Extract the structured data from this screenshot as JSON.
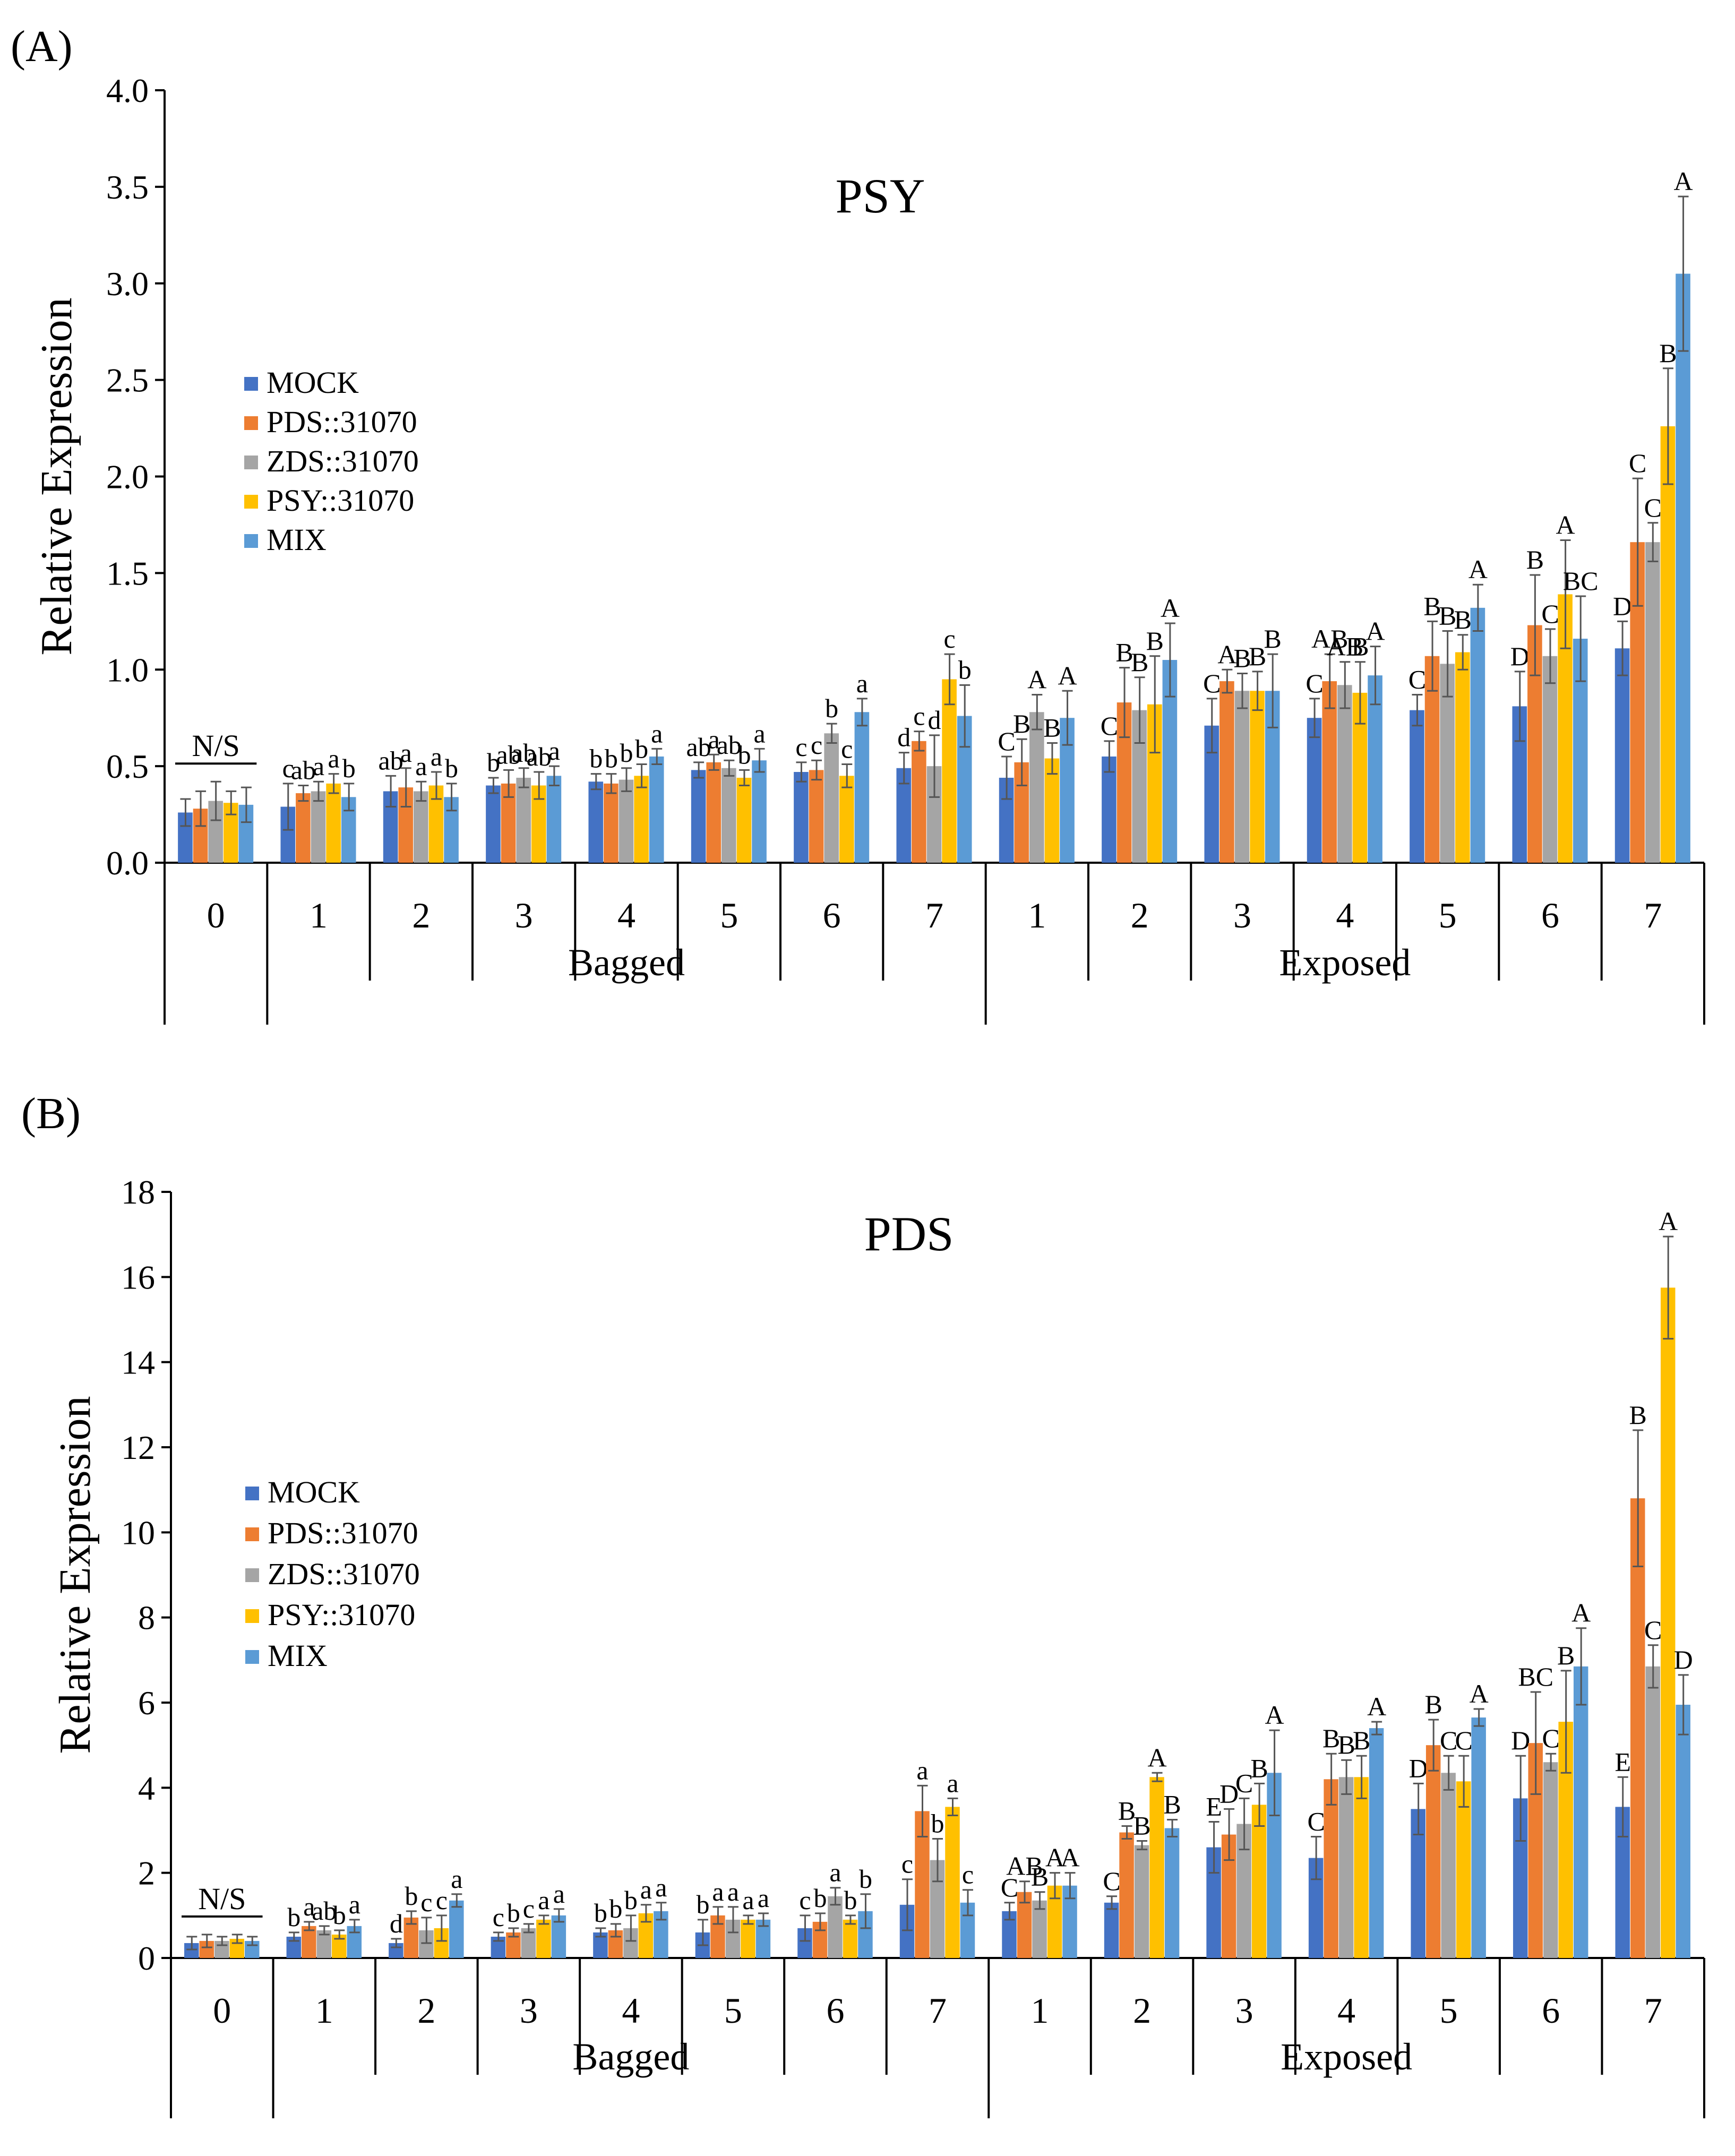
{
  "legend": {
    "series": [
      {
        "name": "MOCK",
        "color": "#4472C4"
      },
      {
        "name": "PDS::31070",
        "color": "#ED7D31"
      },
      {
        "name": "ZDS::31070",
        "color": "#A5A5A5"
      },
      {
        "name": "PSY::31070",
        "color": "#FFC000"
      },
      {
        "name": "MIX",
        "color": "#5B9BD5"
      }
    ]
  },
  "chart_data": [
    {
      "panel_label": "(A)",
      "type": "bar",
      "title": "PSY",
      "ylabel": "Relative Expression",
      "ylim": [
        0,
        4.0
      ],
      "yticks": [
        "0.0",
        "0.5",
        "1.0",
        "1.5",
        "2.0",
        "2.5",
        "3.0",
        "3.5",
        "4.0"
      ],
      "na_label": "N/S",
      "categories": [
        "0",
        "1",
        "2",
        "3",
        "4",
        "5",
        "6",
        "7",
        "1",
        "2",
        "3",
        "4",
        "5",
        "6",
        "7"
      ],
      "groups": [
        {
          "label": "Bagged",
          "from": 1,
          "to": 7
        },
        {
          "label": "Exposed",
          "from": 8,
          "to": 14
        }
      ],
      "series": [
        {
          "name": "MOCK",
          "values": [
            0.26,
            0.29,
            0.37,
            0.4,
            0.42,
            0.48,
            0.47,
            0.49,
            0.44,
            0.55,
            0.71,
            0.75,
            0.79,
            0.81,
            1.11
          ],
          "errors": [
            0.07,
            0.12,
            0.08,
            0.04,
            0.04,
            0.04,
            0.05,
            0.08,
            0.11,
            0.08,
            0.14,
            0.1,
            0.08,
            0.18,
            0.14
          ],
          "letters": [
            "",
            "c",
            "ab",
            "b",
            "b",
            "ab",
            "c",
            "d",
            "C",
            "C",
            "C",
            "C",
            "C",
            "D",
            "D"
          ]
        },
        {
          "name": "PDS::31070",
          "values": [
            0.28,
            0.36,
            0.39,
            0.41,
            0.41,
            0.52,
            0.48,
            0.63,
            0.52,
            0.83,
            0.94,
            0.94,
            1.07,
            1.23,
            1.66
          ],
          "errors": [
            0.09,
            0.04,
            0.1,
            0.07,
            0.05,
            0.04,
            0.05,
            0.05,
            0.12,
            0.18,
            0.06,
            0.14,
            0.18,
            0.26,
            0.33
          ],
          "letters": [
            "",
            "ab",
            "a",
            "ab",
            "b",
            "a",
            "c",
            "c",
            "B",
            "B",
            "A",
            "AB",
            "B",
            "B",
            "C"
          ]
        },
        {
          "name": "ZDS::31070",
          "values": [
            0.32,
            0.37,
            0.37,
            0.44,
            0.43,
            0.49,
            0.67,
            0.5,
            0.78,
            0.79,
            0.89,
            0.92,
            1.03,
            1.07,
            1.66
          ],
          "errors": [
            0.1,
            0.05,
            0.05,
            0.05,
            0.06,
            0.04,
            0.05,
            0.16,
            0.09,
            0.17,
            0.09,
            0.12,
            0.17,
            0.14,
            0.1
          ],
          "letters": [
            "",
            "a",
            "a",
            "ab",
            "b",
            "ab",
            "b",
            "d",
            "A",
            "B",
            "B",
            "AB",
            "B",
            "C",
            "C"
          ]
        },
        {
          "name": "PSY::31070",
          "values": [
            0.31,
            0.41,
            0.4,
            0.4,
            0.45,
            0.44,
            0.45,
            0.95,
            0.54,
            0.82,
            0.89,
            0.88,
            1.09,
            1.39,
            2.26
          ],
          "errors": [
            0.06,
            0.05,
            0.07,
            0.07,
            0.06,
            0.04,
            0.06,
            0.13,
            0.08,
            0.25,
            0.1,
            0.16,
            0.09,
            0.28,
            0.3
          ],
          "letters": [
            "",
            "a",
            "a",
            "ab",
            "b",
            "b",
            "c",
            "c",
            "B",
            "B",
            "B",
            "B",
            "B",
            "A",
            "B"
          ]
        },
        {
          "name": "MIX",
          "values": [
            0.3,
            0.34,
            0.34,
            0.45,
            0.55,
            0.53,
            0.78,
            0.76,
            0.75,
            1.05,
            0.89,
            0.97,
            1.32,
            1.16,
            3.05
          ],
          "errors": [
            0.09,
            0.07,
            0.07,
            0.05,
            0.04,
            0.06,
            0.07,
            0.16,
            0.14,
            0.19,
            0.19,
            0.15,
            0.12,
            0.22,
            0.4
          ],
          "letters": [
            "",
            "b",
            "b",
            "a",
            "a",
            "a",
            "a",
            "b",
            "A",
            "A",
            "B",
            "A",
            "A",
            "BC",
            "A"
          ]
        }
      ]
    },
    {
      "panel_label": "(B)",
      "type": "bar",
      "title": "PDS",
      "ylabel": "Relative Expression",
      "ylim": [
        0,
        18
      ],
      "yticks": [
        "0",
        "2",
        "4",
        "6",
        "8",
        "10",
        "12",
        "14",
        "16",
        "18"
      ],
      "na_label": "N/S",
      "categories": [
        "0",
        "1",
        "2",
        "3",
        "4",
        "5",
        "6",
        "7",
        "1",
        "2",
        "3",
        "4",
        "5",
        "6",
        "7"
      ],
      "groups": [
        {
          "label": "Bagged",
          "from": 1,
          "to": 7
        },
        {
          "label": "Exposed",
          "from": 8,
          "to": 14
        }
      ],
      "series": [
        {
          "name": "MOCK",
          "values": [
            0.35,
            0.5,
            0.35,
            0.5,
            0.6,
            0.6,
            0.7,
            1.25,
            1.1,
            1.3,
            2.6,
            2.35,
            3.5,
            3.75,
            3.55
          ],
          "errors": [
            0.15,
            0.1,
            0.1,
            0.1,
            0.1,
            0.3,
            0.3,
            0.6,
            0.2,
            0.15,
            0.6,
            0.5,
            0.6,
            1.0,
            0.7
          ],
          "letters": [
            "",
            "b",
            "d",
            "c",
            "b",
            "b",
            "c",
            "c",
            "C",
            "C",
            "E",
            "C",
            "D",
            "D",
            "E"
          ]
        },
        {
          "name": "PDS::31070",
          "values": [
            0.4,
            0.75,
            0.95,
            0.6,
            0.65,
            1.0,
            0.85,
            3.45,
            1.55,
            2.95,
            2.9,
            4.2,
            5.0,
            5.05,
            10.8
          ],
          "errors": [
            0.15,
            0.1,
            0.15,
            0.1,
            0.15,
            0.2,
            0.2,
            0.6,
            0.25,
            0.15,
            0.6,
            0.6,
            0.6,
            1.2,
            1.6
          ],
          "letters": [
            "",
            "a",
            "b",
            "b",
            "b",
            "a",
            "b",
            "a",
            "AB",
            "B",
            "D",
            "B",
            "B",
            "BC",
            "B"
          ]
        },
        {
          "name": "ZDS::31070",
          "values": [
            0.4,
            0.65,
            0.65,
            0.7,
            0.7,
            0.9,
            1.45,
            2.3,
            1.35,
            2.65,
            3.15,
            4.25,
            4.35,
            4.6,
            6.85
          ],
          "errors": [
            0.1,
            0.1,
            0.3,
            0.1,
            0.3,
            0.3,
            0.2,
            0.5,
            0.2,
            0.1,
            0.6,
            0.4,
            0.4,
            0.2,
            0.5
          ],
          "letters": [
            "",
            "ab",
            "c",
            "c",
            "b",
            "a",
            "a",
            "b",
            "B",
            "B",
            "C",
            "B",
            "C",
            "C",
            "C"
          ]
        },
        {
          "name": "PSY::31070",
          "values": [
            0.45,
            0.55,
            0.7,
            0.9,
            1.05,
            0.9,
            0.9,
            3.55,
            1.7,
            4.25,
            3.6,
            4.25,
            4.15,
            5.55,
            15.75
          ],
          "errors": [
            0.1,
            0.1,
            0.3,
            0.1,
            0.2,
            0.1,
            0.1,
            0.2,
            0.3,
            0.1,
            0.5,
            0.5,
            0.6,
            1.2,
            1.2
          ],
          "letters": [
            "",
            "b",
            "c",
            "a",
            "a",
            "a",
            "b",
            "a",
            "A",
            "A",
            "B",
            "B",
            "C",
            "B",
            "A"
          ]
        },
        {
          "name": "MIX",
          "values": [
            0.4,
            0.75,
            1.35,
            1.0,
            1.1,
            0.9,
            1.1,
            1.3,
            1.7,
            3.05,
            4.35,
            5.4,
            5.65,
            6.85,
            5.95
          ],
          "errors": [
            0.1,
            0.15,
            0.15,
            0.15,
            0.2,
            0.15,
            0.4,
            0.3,
            0.3,
            0.2,
            1.0,
            0.15,
            0.2,
            0.9,
            0.7
          ],
          "letters": [
            "",
            "a",
            "a",
            "a",
            "a",
            "a",
            "b",
            "c",
            "A",
            "B",
            "A",
            "A",
            "A",
            "A",
            "D"
          ]
        }
      ]
    }
  ]
}
